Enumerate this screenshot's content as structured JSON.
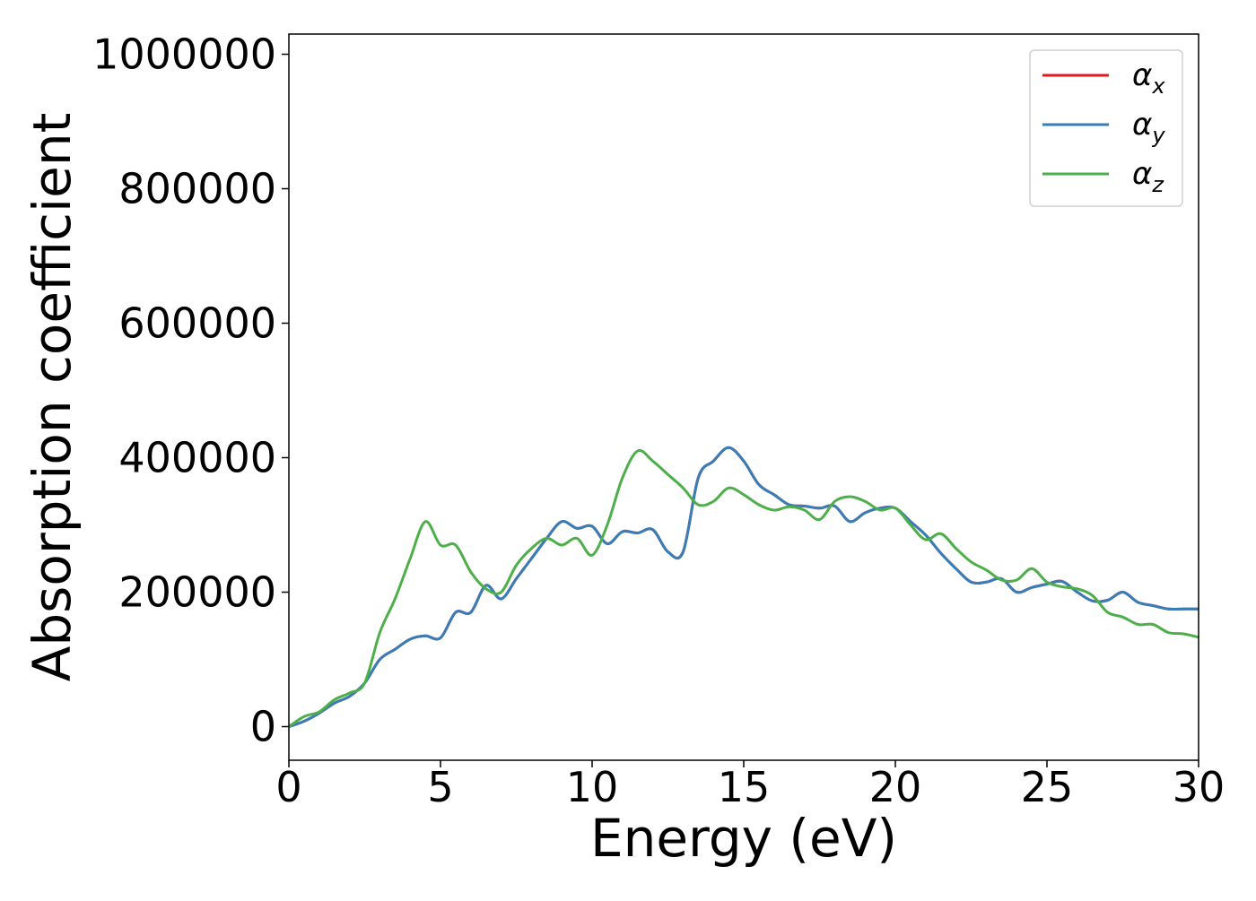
{
  "chart_data": {
    "type": "line",
    "title": "",
    "xlabel": "Energy (eV)",
    "ylabel": "Absorption coefficient",
    "xlim": [
      0,
      30
    ],
    "ylim": [
      -50000,
      1030000
    ],
    "xticks": [
      0,
      5,
      10,
      15,
      20,
      25,
      30
    ],
    "xtick_labels": [
      "0",
      "5",
      "10",
      "15",
      "20",
      "25",
      "30"
    ],
    "yticks": [
      0,
      200000,
      400000,
      600000,
      800000,
      1000000
    ],
    "ytick_labels": [
      "0",
      "200000",
      "400000",
      "600000",
      "800000",
      "1000000"
    ],
    "grid": false,
    "legend_position": "top-right",
    "legend": [
      {
        "symbol": "α",
        "subscript": "x",
        "color": "#e41a1c"
      },
      {
        "symbol": "α",
        "subscript": "y",
        "color": "#377eb8"
      },
      {
        "symbol": "α",
        "subscript": "z",
        "color": "#4daf4a"
      }
    ],
    "series": [
      {
        "name": "αx",
        "color": "#e41a1c",
        "x": [
          0,
          0.5,
          1,
          1.5,
          2,
          2.5,
          3,
          3.5,
          4,
          4.5,
          5,
          5.5,
          6,
          6.5,
          7,
          7.5,
          8,
          8.5,
          9,
          9.5,
          10,
          10.5,
          11,
          11.5,
          12,
          12.5,
          13,
          13.5,
          14,
          14.5,
          15,
          15.5,
          16,
          16.5,
          17,
          17.5,
          18,
          18.5,
          19,
          19.5,
          20,
          20.5,
          21,
          21.5,
          22,
          22.5,
          23,
          23.5,
          24,
          24.5,
          25,
          25.5,
          26,
          26.5,
          27,
          27.5,
          28,
          28.5,
          29,
          29.5,
          30
        ],
        "y": [
          0,
          8000,
          20000,
          35000,
          45000,
          65000,
          100000,
          115000,
          130000,
          135000,
          132000,
          170000,
          170000,
          210000,
          190000,
          220000,
          250000,
          280000,
          305000,
          295000,
          298000,
          272000,
          290000,
          288000,
          293000,
          260000,
          260000,
          370000,
          395000,
          415000,
          395000,
          360000,
          345000,
          330000,
          328000,
          325000,
          328000,
          305000,
          318000,
          325000,
          325000,
          305000,
          285000,
          258000,
          235000,
          215000,
          215000,
          220000,
          200000,
          207000,
          212000,
          216000,
          200000,
          187000,
          188000,
          200000,
          185000,
          180000,
          175000,
          175000,
          175000
        ]
      },
      {
        "name": "αy",
        "color": "#377eb8",
        "x": [
          0,
          0.5,
          1,
          1.5,
          2,
          2.5,
          3,
          3.5,
          4,
          4.5,
          5,
          5.5,
          6,
          6.5,
          7,
          7.5,
          8,
          8.5,
          9,
          9.5,
          10,
          10.5,
          11,
          11.5,
          12,
          12.5,
          13,
          13.5,
          14,
          14.5,
          15,
          15.5,
          16,
          16.5,
          17,
          17.5,
          18,
          18.5,
          19,
          19.5,
          20,
          20.5,
          21,
          21.5,
          22,
          22.5,
          23,
          23.5,
          24,
          24.5,
          25,
          25.5,
          26,
          26.5,
          27,
          27.5,
          28,
          28.5,
          29,
          29.5,
          30
        ],
        "y": [
          0,
          8000,
          20000,
          35000,
          45000,
          65000,
          100000,
          115000,
          130000,
          135000,
          132000,
          170000,
          170000,
          210000,
          190000,
          220000,
          250000,
          280000,
          305000,
          295000,
          298000,
          272000,
          290000,
          288000,
          293000,
          260000,
          260000,
          370000,
          395000,
          415000,
          395000,
          360000,
          345000,
          330000,
          328000,
          325000,
          328000,
          305000,
          318000,
          325000,
          325000,
          305000,
          285000,
          258000,
          235000,
          215000,
          215000,
          220000,
          200000,
          207000,
          212000,
          216000,
          200000,
          187000,
          188000,
          200000,
          185000,
          180000,
          175000,
          175000,
          175000
        ]
      },
      {
        "name": "αz",
        "color": "#4daf4a",
        "x": [
          0,
          0.5,
          1,
          1.5,
          2,
          2.5,
          3,
          3.5,
          4,
          4.5,
          5,
          5.5,
          6,
          6.5,
          7,
          7.5,
          8,
          8.5,
          9,
          9.5,
          10,
          10.5,
          11,
          11.5,
          12,
          12.5,
          13,
          13.5,
          14,
          14.5,
          15,
          15.5,
          16,
          16.5,
          17,
          17.5,
          18,
          18.5,
          19,
          19.5,
          20,
          20.5,
          21,
          21.5,
          22,
          22.5,
          23,
          23.5,
          24,
          24.5,
          25,
          25.5,
          26,
          26.5,
          27,
          27.5,
          28,
          28.5,
          29,
          29.5,
          30
        ],
        "y": [
          0,
          15000,
          22000,
          40000,
          50000,
          65000,
          140000,
          190000,
          250000,
          305000,
          270000,
          270000,
          230000,
          205000,
          200000,
          240000,
          265000,
          280000,
          270000,
          280000,
          255000,
          300000,
          370000,
          410000,
          395000,
          375000,
          355000,
          330000,
          335000,
          355000,
          345000,
          330000,
          322000,
          327000,
          322000,
          308000,
          335000,
          342000,
          335000,
          322000,
          325000,
          300000,
          278000,
          287000,
          265000,
          245000,
          233000,
          218000,
          218000,
          235000,
          215000,
          208000,
          205000,
          195000,
          170000,
          163000,
          152000,
          152000,
          140000,
          138000,
          133000
        ]
      }
    ]
  }
}
